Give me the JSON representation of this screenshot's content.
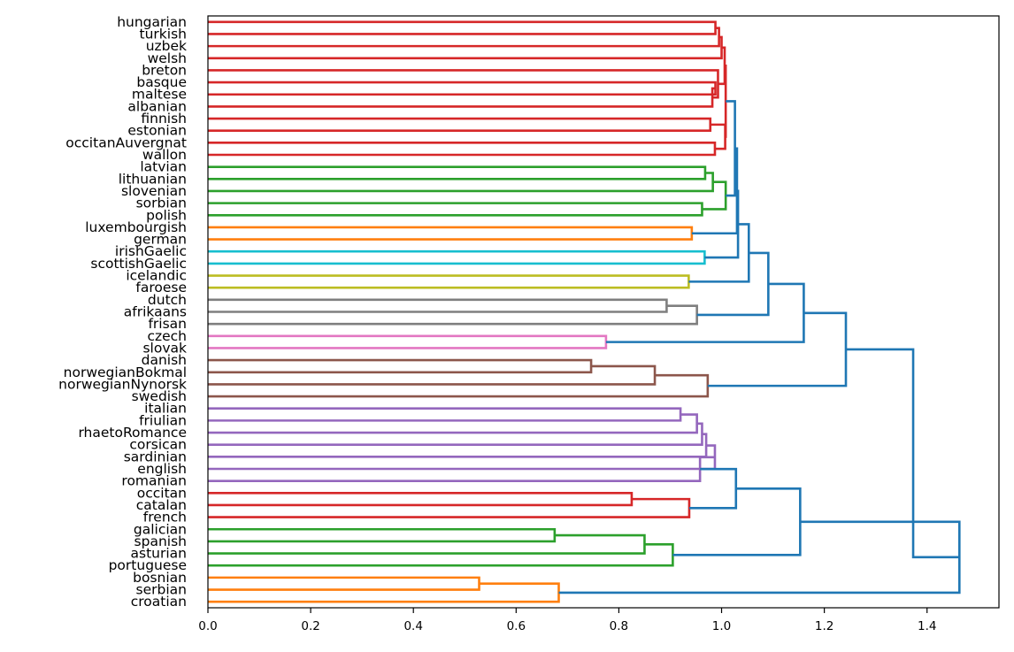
{
  "chart_data": {
    "type": "dendrogram",
    "orientation": "horizontal",
    "title": "",
    "xlabel": "",
    "ylabel": "",
    "xlim": [
      0,
      1.54
    ],
    "xticks": [
      0.0,
      0.2,
      0.4,
      0.6,
      0.8,
      1.0,
      1.2,
      1.4
    ],
    "xtick_labels": [
      "0.0",
      "0.2",
      "0.4",
      "0.6",
      "0.8",
      "1.0",
      "1.2",
      "1.4"
    ],
    "grid": false,
    "colors": {
      "red": "#d62728",
      "green": "#2ca02c",
      "blue": "#1f77b4",
      "orange": "#ff7f0e",
      "cyan": "#17becf",
      "olive": "#bcbd22",
      "gray": "#7f7f7f",
      "pink": "#e377c2",
      "brown": "#8c564b",
      "purple": "#9467bd"
    },
    "leaves": [
      "hungarian",
      "turkish",
      "uzbek",
      "welsh",
      "breton",
      "basque",
      "maltese",
      "albanian",
      "finnish",
      "estonian",
      "occitanAuvergnat",
      "wallon",
      "latvian",
      "lithuanian",
      "slovenian",
      "sorbian",
      "polish",
      "luxembourgish",
      "german",
      "irishGaelic",
      "scottishGaelic",
      "icelandic",
      "faroese",
      "dutch",
      "afrikaans",
      "frisan",
      "czech",
      "slovak",
      "danish",
      "norwegianBokmal",
      "norwegianNynorsk",
      "swedish",
      "italian",
      "friulian",
      "rhaetoRomance",
      "corsican",
      "sardinian",
      "english",
      "romanian",
      "occitan",
      "catalan",
      "french",
      "galician",
      "spanish",
      "asturian",
      "portuguese",
      "bosnian",
      "serbian",
      "croatian"
    ],
    "merges": [
      {
        "a": "L46",
        "b": "L47",
        "h": 0.528,
        "color": "orange"
      },
      {
        "a": "M0",
        "b": "L48",
        "h": 0.683,
        "color": "orange"
      },
      {
        "a": "L42",
        "b": "L43",
        "h": 0.675,
        "color": "green"
      },
      {
        "a": "M2",
        "b": "L44",
        "h": 0.85,
        "color": "green"
      },
      {
        "a": "M3",
        "b": "L45",
        "h": 0.905,
        "color": "green"
      },
      {
        "a": "L39",
        "b": "L40",
        "h": 0.825,
        "color": "red"
      },
      {
        "a": "M5",
        "b": "L41",
        "h": 0.937,
        "color": "red"
      },
      {
        "a": "L32",
        "b": "L33",
        "h": 0.92,
        "color": "purple"
      },
      {
        "a": "M7",
        "b": "L34",
        "h": 0.952,
        "color": "purple"
      },
      {
        "a": "M8",
        "b": "L35",
        "h": 0.962,
        "color": "purple"
      },
      {
        "a": "M9",
        "b": "L36",
        "h": 0.97,
        "color": "purple"
      },
      {
        "a": "M10",
        "b": "L37",
        "h": 0.987,
        "color": "purple"
      },
      {
        "a": "M11",
        "b": "L38",
        "h": 0.958,
        "color": "purple"
      },
      {
        "a": "M12",
        "b": "M6",
        "h": 1.028,
        "color": "blue"
      },
      {
        "a": "M13",
        "b": "M4",
        "h": 1.153,
        "color": "blue"
      },
      {
        "a": "M14",
        "b": "M1",
        "h": 1.463,
        "color": "blue"
      },
      {
        "a": "L28",
        "b": "L29",
        "h": 0.746,
        "color": "brown"
      },
      {
        "a": "M16",
        "b": "L30",
        "h": 0.87,
        "color": "brown"
      },
      {
        "a": "M17",
        "b": "L31",
        "h": 0.973,
        "color": "brown"
      },
      {
        "a": "L26",
        "b": "L27",
        "h": 0.775,
        "color": "pink"
      },
      {
        "a": "L23",
        "b": "L24",
        "h": 0.893,
        "color": "gray"
      },
      {
        "a": "M20",
        "b": "L25",
        "h": 0.952,
        "color": "gray"
      },
      {
        "a": "L21",
        "b": "L22",
        "h": 0.936,
        "color": "olive"
      },
      {
        "a": "L19",
        "b": "L20",
        "h": 0.967,
        "color": "cyan"
      },
      {
        "a": "L17",
        "b": "L18",
        "h": 0.942,
        "color": "orange"
      },
      {
        "a": "L12",
        "b": "L13",
        "h": 0.968,
        "color": "green"
      },
      {
        "a": "M25",
        "b": "L14",
        "h": 0.983,
        "color": "green"
      },
      {
        "a": "L15",
        "b": "L16",
        "h": 0.962,
        "color": "green"
      },
      {
        "a": "M26",
        "b": "M27",
        "h": 1.008,
        "color": "green"
      },
      {
        "a": "L0",
        "b": "L1",
        "h": 0.988,
        "color": "red"
      },
      {
        "a": "M29",
        "b": "L2",
        "h": 0.995,
        "color": "red"
      },
      {
        "a": "M30",
        "b": "L3",
        "h": 1.0,
        "color": "red"
      },
      {
        "a": "L5",
        "b": "L6",
        "h": 0.988,
        "color": "red"
      },
      {
        "a": "M32",
        "b": "L7",
        "h": 0.982,
        "color": "red"
      },
      {
        "a": "L4",
        "b": "M33",
        "h": 0.993,
        "color": "red"
      },
      {
        "a": "M31",
        "b": "M34",
        "h": 1.006,
        "color": "red"
      },
      {
        "a": "L8",
        "b": "L9",
        "h": 0.978,
        "color": "red"
      },
      {
        "a": "L10",
        "b": "L11",
        "h": 0.987,
        "color": "red"
      },
      {
        "a": "M36",
        "b": "M37",
        "h": 1.007,
        "color": "red"
      },
      {
        "a": "M35",
        "b": "M38",
        "h": 1.008,
        "color": "red"
      },
      {
        "a": "M39",
        "b": "M28",
        "h": 1.026,
        "color": "blue"
      },
      {
        "a": "M40",
        "b": "M24",
        "h": 1.03,
        "color": "blue"
      },
      {
        "a": "M41",
        "b": "M23",
        "h": 1.032,
        "color": "blue"
      },
      {
        "a": "M42",
        "b": "M22",
        "h": 1.053,
        "color": "blue"
      },
      {
        "a": "M43",
        "b": "M21",
        "h": 1.091,
        "color": "blue"
      },
      {
        "a": "M44",
        "b": "M19",
        "h": 1.16,
        "color": "blue"
      },
      {
        "a": "M45",
        "b": "M18",
        "h": 1.242,
        "color": "blue"
      },
      {
        "a": "M46",
        "b": "M15",
        "h": 1.373,
        "color": "blue"
      }
    ]
  }
}
